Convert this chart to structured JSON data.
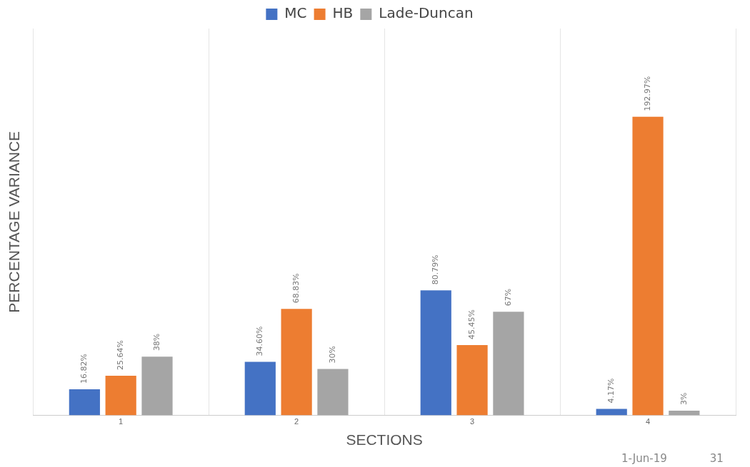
{
  "chart_data": {
    "type": "bar",
    "xlabel": "SECTIONS",
    "ylabel": "PERCENTAGE VARIANCE",
    "categories": [
      "1",
      "2",
      "3",
      "4"
    ],
    "series": [
      {
        "name": "MC",
        "color": "#4472c4",
        "values": [
          16.82,
          34.6,
          80.79,
          4.17
        ],
        "value_labels": [
          "16.82%",
          "34.60%",
          "80.79%",
          "4.17%"
        ]
      },
      {
        "name": "HB",
        "color": "#ed7d31",
        "values": [
          25.64,
          68.83,
          45.45,
          192.97
        ],
        "value_labels": [
          "25.64%",
          "68.83%",
          "45.45%",
          "192.97%"
        ]
      },
      {
        "name": "Lade-Duncan",
        "color": "#a5a5a5",
        "values": [
          38,
          30,
          67,
          3
        ],
        "value_labels": [
          "38%",
          "30%",
          "67%",
          "3%"
        ]
      }
    ],
    "ylim": [
      0,
      250
    ],
    "tick_labels": "x",
    "grid": "x",
    "legend": "top",
    "annotations": [
      "1-Jun-19",
      "31"
    ]
  }
}
